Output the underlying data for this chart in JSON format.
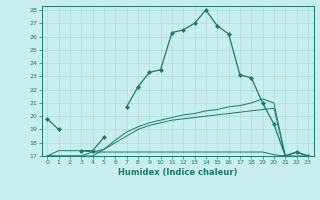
{
  "xlabel": "Humidex (Indice chaleur)",
  "x_values": [
    0,
    1,
    2,
    3,
    4,
    5,
    6,
    7,
    8,
    9,
    10,
    11,
    12,
    13,
    14,
    15,
    16,
    17,
    18,
    19,
    20,
    21,
    22,
    23
  ],
  "series1": [
    19.8,
    19.0,
    null,
    17.4,
    17.4,
    18.4,
    null,
    20.7,
    22.2,
    23.3,
    23.5,
    26.3,
    26.5,
    27.0,
    28.0,
    26.8,
    26.2,
    23.1,
    22.9,
    21.0,
    19.4,
    17.0,
    17.3,
    17.0
  ],
  "series2": [
    17.0,
    17.4,
    17.4,
    17.4,
    17.3,
    17.3,
    17.3,
    17.3,
    17.3,
    17.3,
    17.3,
    17.3,
    17.3,
    17.3,
    17.3,
    17.3,
    17.3,
    17.3,
    17.3,
    17.3,
    17.1,
    17.0,
    17.3,
    17.0
  ],
  "series3": [
    17.0,
    17.0,
    17.0,
    17.0,
    17.3,
    17.5,
    18.2,
    18.8,
    19.2,
    19.5,
    19.7,
    19.9,
    20.1,
    20.2,
    20.4,
    20.5,
    20.7,
    20.8,
    21.0,
    21.3,
    21.0,
    17.0,
    17.3,
    17.0
  ],
  "series4": [
    17.0,
    17.0,
    17.0,
    17.0,
    17.0,
    17.5,
    18.0,
    18.5,
    19.0,
    19.3,
    19.5,
    19.7,
    19.8,
    19.9,
    20.0,
    20.1,
    20.2,
    20.3,
    20.4,
    20.5,
    20.6,
    17.0,
    17.0,
    17.0
  ],
  "line_color": "#1a7a6e",
  "bg_color": "#c8eeee",
  "grid_color": "#b0dada",
  "ylim": [
    17,
    28
  ],
  "xlim": [
    -0.5,
    23.5
  ],
  "yticks": [
    17,
    18,
    19,
    20,
    21,
    22,
    23,
    24,
    25,
    26,
    27,
    28
  ],
  "xticks": [
    0,
    1,
    2,
    3,
    4,
    5,
    6,
    7,
    8,
    9,
    10,
    11,
    12,
    13,
    14,
    15,
    16,
    17,
    18,
    19,
    20,
    21,
    22,
    23
  ]
}
